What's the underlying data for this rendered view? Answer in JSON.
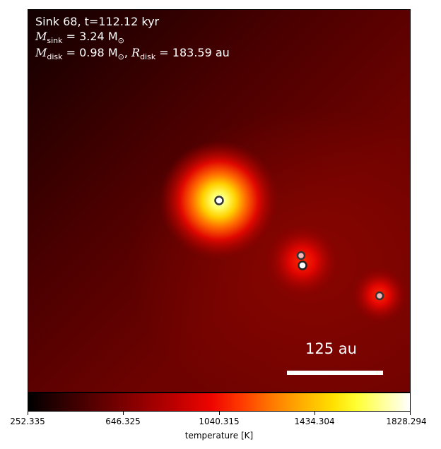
{
  "header": {
    "line1": "Sink 68, t=112.12 kyr",
    "sink_mass_symbol": "M",
    "sink_mass_sub": "sink",
    "sink_mass_value": " = 3.24 M",
    "sink_mass_unit_sub": "⊙",
    "disk_mass_symbol": "M",
    "disk_mass_sub": "disk",
    "disk_mass_value": " = 0.98 M",
    "disk_mass_unit_sub": "⊙",
    "disk_radius_sep": ", ",
    "disk_radius_symbol": "R",
    "disk_radius_sub": "disk",
    "disk_radius_value": " = 183.59 au"
  },
  "scalebar": {
    "label": "125 au"
  },
  "colorbar": {
    "title": "temperature [K]",
    "ticks": [
      "252.335",
      "646.325",
      "1040.315",
      "1434.304",
      "1828.294"
    ],
    "vmin": 252.335,
    "vmax": 1828.294,
    "colormap": "hot"
  },
  "sinks": [
    {
      "name": "central-sink",
      "fill": "#ffffff"
    },
    {
      "name": "companion-sink-upper",
      "fill": "#f2b7b7"
    },
    {
      "name": "companion-sink-lower",
      "fill": "#ffffff"
    },
    {
      "name": "companion-sink-right",
      "fill": "#f2b7b7"
    }
  ]
}
